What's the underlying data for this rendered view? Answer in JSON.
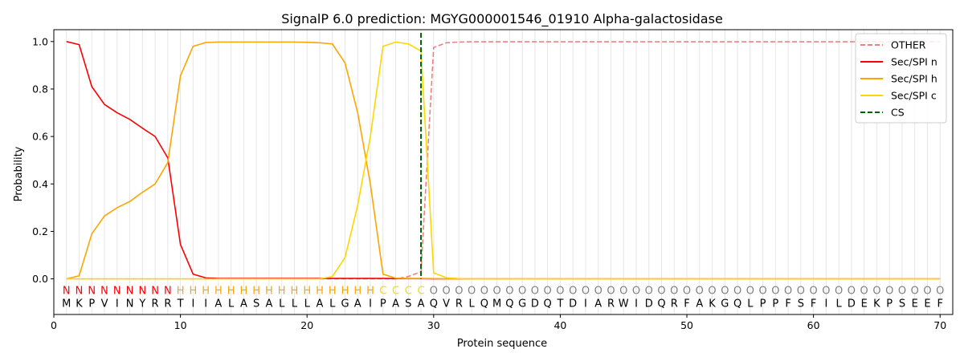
{
  "chart_data": {
    "type": "line",
    "title": "SignalP 6.0 prediction: MGYG000001546_01910 Alpha-galactosidase",
    "xlabel": "Protein sequence",
    "ylabel": "Probability",
    "xlim": [
      0,
      71
    ],
    "ylim": [
      -0.15,
      1.05
    ],
    "x_ticks": [
      0,
      10,
      20,
      30,
      40,
      50,
      60,
      70
    ],
    "y_ticks": [
      0.0,
      0.2,
      0.4,
      0.6,
      0.8,
      1.0
    ],
    "legend_position": "top-right",
    "sequence": [
      "M",
      "K",
      "P",
      "V",
      "I",
      "N",
      "Y",
      "R",
      "R",
      "T",
      "I",
      "I",
      "A",
      "L",
      "A",
      "S",
      "A",
      "L",
      "L",
      "L",
      "A",
      "L",
      "G",
      "A",
      "I",
      "P",
      "A",
      "S",
      "A",
      "Q",
      "V",
      "R",
      "L",
      "Q",
      "M",
      "Q",
      "G",
      "D",
      "Q",
      "T",
      "D",
      "I",
      "A",
      "R",
      "W",
      "I",
      "D",
      "Q",
      "R",
      "F",
      "A",
      "K",
      "G",
      "Q",
      "L",
      "P",
      "P",
      "F",
      "S",
      "F",
      "I",
      "L",
      "D",
      "E",
      "K",
      "P",
      "S",
      "E",
      "E",
      "F"
    ],
    "region_labels": [
      "N",
      "N",
      "N",
      "N",
      "N",
      "N",
      "N",
      "N",
      "N",
      "H",
      "H",
      "H",
      "H",
      "H",
      "H",
      "H",
      "H",
      "H",
      "H",
      "H",
      "H",
      "H",
      "H",
      "H",
      "H",
      "C",
      "C",
      "C",
      "C",
      "O",
      "O",
      "O",
      "O",
      "O",
      "O",
      "O",
      "O",
      "O",
      "O",
      "O",
      "O",
      "O",
      "O",
      "O",
      "O",
      "O",
      "O",
      "O",
      "O",
      "O",
      "O",
      "O",
      "O",
      "O",
      "O",
      "O",
      "O",
      "O",
      "O",
      "O",
      "O",
      "O",
      "O",
      "O",
      "O",
      "O",
      "O",
      "O",
      "O",
      "O"
    ],
    "region_colors": {
      "N": "#ff0000",
      "H": "#ffa500",
      "C": "#ffd700",
      "O": "#808080"
    },
    "cleavage_site": 29,
    "series": [
      {
        "name": "OTHER",
        "color": "#f08080",
        "dash": "dashed",
        "values": [
          0.0,
          0.0,
          0.0,
          0.0,
          0.0,
          0.0,
          0.0,
          0.0,
          0.0,
          0.0,
          0.0,
          0.0,
          0.0,
          0.0,
          0.0,
          0.0,
          0.0,
          0.0,
          0.0,
          0.0,
          0.0,
          0.0,
          0.0,
          0.0,
          0.0,
          0.0,
          0.0,
          0.01,
          0.03,
          0.975,
          0.995,
          0.998,
          0.999,
          0.999,
          0.999,
          0.999,
          0.999,
          0.999,
          0.999,
          0.999,
          0.999,
          0.999,
          0.999,
          0.999,
          0.999,
          0.999,
          0.999,
          0.999,
          0.999,
          0.999,
          0.999,
          0.999,
          0.999,
          0.999,
          0.999,
          0.999,
          0.999,
          0.999,
          0.999,
          0.999,
          0.999,
          0.999,
          0.999,
          0.999,
          0.999,
          0.999,
          0.999,
          0.999,
          0.999,
          0.999
        ]
      },
      {
        "name": "Sec/SPI n",
        "color": "#ff0000",
        "dash": "solid",
        "values": [
          1.0,
          0.987,
          0.81,
          0.735,
          0.7,
          0.672,
          0.635,
          0.6,
          0.51,
          0.145,
          0.02,
          0.004,
          0.002,
          0.002,
          0.002,
          0.002,
          0.002,
          0.002,
          0.002,
          0.002,
          0.002,
          0.002,
          0.002,
          0.002,
          0.002,
          0.002,
          0.001,
          0.001,
          0.001,
          0.0,
          0.0,
          0.0,
          0.0,
          0.0,
          0.0,
          0.0,
          0.0,
          0.0,
          0.0,
          0.0,
          0.0,
          0.0,
          0.0,
          0.0,
          0.0,
          0.0,
          0.0,
          0.0,
          0.0,
          0.0,
          0.0,
          0.0,
          0.0,
          0.0,
          0.0,
          0.0,
          0.0,
          0.0,
          0.0,
          0.0,
          0.0,
          0.0,
          0.0,
          0.0,
          0.0,
          0.0,
          0.0,
          0.0,
          0.0,
          0.0
        ]
      },
      {
        "name": "Sec/SPI h",
        "color": "#ffa500",
        "dash": "solid",
        "values": [
          0.0,
          0.013,
          0.19,
          0.265,
          0.3,
          0.326,
          0.365,
          0.4,
          0.49,
          0.855,
          0.98,
          0.996,
          0.998,
          0.998,
          0.998,
          0.998,
          0.998,
          0.998,
          0.998,
          0.997,
          0.995,
          0.99,
          0.91,
          0.7,
          0.4,
          0.02,
          0.003,
          0.002,
          0.002,
          0.001,
          0.0,
          0.0,
          0.0,
          0.0,
          0.0,
          0.0,
          0.0,
          0.0,
          0.0,
          0.0,
          0.0,
          0.0,
          0.0,
          0.0,
          0.0,
          0.0,
          0.0,
          0.0,
          0.0,
          0.0,
          0.0,
          0.0,
          0.0,
          0.0,
          0.0,
          0.0,
          0.0,
          0.0,
          0.0,
          0.0,
          0.0,
          0.0,
          0.0,
          0.0,
          0.0,
          0.0,
          0.0,
          0.0,
          0.0,
          0.0
        ]
      },
      {
        "name": "Sec/SPI c",
        "color": "#ffd700",
        "dash": "solid",
        "values": [
          0.0,
          0.0,
          0.0,
          0.0,
          0.0,
          0.0,
          0.0,
          0.0,
          0.0,
          0.0,
          0.0,
          0.0,
          0.0,
          0.0,
          0.0,
          0.0,
          0.0,
          0.0,
          0.0,
          0.0,
          0.0,
          0.01,
          0.09,
          0.31,
          0.6,
          0.98,
          0.998,
          0.99,
          0.96,
          0.025,
          0.005,
          0.001,
          0.0,
          0.0,
          0.0,
          0.0,
          0.0,
          0.0,
          0.0,
          0.0,
          0.0,
          0.0,
          0.0,
          0.0,
          0.0,
          0.0,
          0.0,
          0.0,
          0.0,
          0.0,
          0.0,
          0.0,
          0.0,
          0.0,
          0.0,
          0.0,
          0.0,
          0.0,
          0.0,
          0.0,
          0.0,
          0.0,
          0.0,
          0.0,
          0.0,
          0.0,
          0.0,
          0.0,
          0.0,
          0.0
        ]
      }
    ],
    "legend": [
      {
        "label": "OTHER",
        "color": "#f08080",
        "dash": "dashed"
      },
      {
        "label": "Sec/SPI n",
        "color": "#ff0000",
        "dash": "solid"
      },
      {
        "label": "Sec/SPI h",
        "color": "#ffa500",
        "dash": "solid"
      },
      {
        "label": "Sec/SPI c",
        "color": "#ffd700",
        "dash": "solid"
      },
      {
        "label": "CS",
        "color": "#006400",
        "dash": "dashed"
      }
    ]
  }
}
